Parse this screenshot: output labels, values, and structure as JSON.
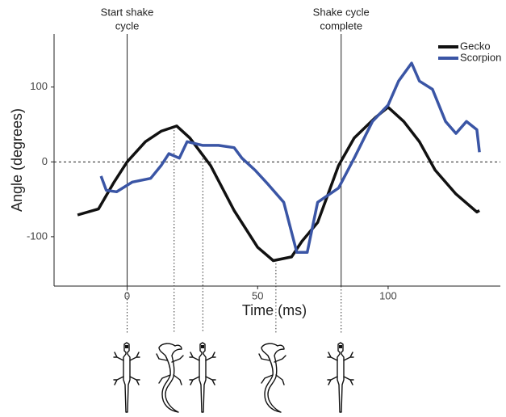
{
  "chart_data": {
    "type": "line",
    "x_label": "Time (ms)",
    "y_label": "Angle (degrees)",
    "xlim": [
      -28,
      143
    ],
    "ylim": [
      -166,
      171
    ],
    "xticks": [
      0,
      50,
      100
    ],
    "yticks": [
      -100,
      0,
      100
    ],
    "reference_line": 0,
    "annotations": [
      {
        "lines": [
          "Start shake",
          "cycle"
        ],
        "x": 0
      },
      {
        "lines": [
          "Shake cycle",
          "complete"
        ],
        "x": 82
      }
    ],
    "markers": [
      18,
      29,
      57
    ],
    "legend": "top-right",
    "series": [
      {
        "name": "Gecko",
        "color": "#111111",
        "x": [
          -19,
          -11,
          -5,
          0,
          7,
          13,
          19,
          24,
          32,
          41,
          50,
          56,
          63,
          67,
          73,
          81,
          87,
          95,
          100,
          106,
          112,
          118,
          126,
          134,
          135
        ],
        "values": [
          -71,
          -63,
          -27,
          0,
          27,
          41,
          48,
          32,
          -5,
          -65,
          -114,
          -132,
          -127,
          -106,
          -81,
          -5,
          32,
          59,
          73,
          54,
          27,
          -11,
          -43,
          -67,
          -65
        ]
      },
      {
        "name": "Scorpion",
        "color": "#3a55a5",
        "x": [
          -10,
          -8,
          -4,
          2,
          9,
          13,
          16,
          20,
          23,
          29,
          35,
          41,
          44,
          49,
          54,
          60,
          65,
          69,
          73,
          81,
          87,
          94,
          100,
          104,
          109,
          112,
          117,
          122,
          126,
          130,
          134,
          135
        ],
        "values": [
          -19,
          -38,
          -40,
          -27,
          -22,
          -5,
          11,
          5,
          27,
          22,
          22,
          19,
          5,
          -11,
          -30,
          -54,
          -121,
          -121,
          -54,
          -35,
          5,
          54,
          76,
          108,
          132,
          108,
          97,
          54,
          38,
          54,
          43,
          13
        ]
      }
    ]
  }
}
